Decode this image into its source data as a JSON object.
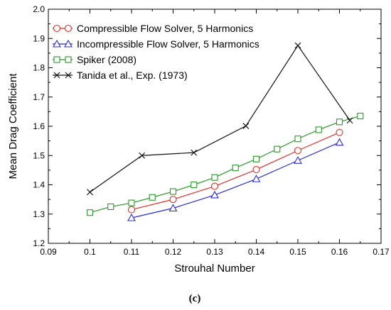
{
  "chart_data": {
    "type": "line",
    "title": "",
    "xlabel": "Strouhal Number",
    "ylabel": "Mean Drag Coefficient",
    "xlim": [
      0.09,
      0.17
    ],
    "ylim": [
      1.2,
      2.0
    ],
    "x_ticks": [
      "0.09",
      "0.1",
      "0.11",
      "0.12",
      "0.13",
      "0.14",
      "0.15",
      "0.16",
      "0.17"
    ],
    "y_ticks": [
      "1.2",
      "1.3",
      "1.4",
      "1.5",
      "1.6",
      "1.7",
      "1.8",
      "1.9",
      "2.0"
    ],
    "grid": false,
    "legend_position": "top-left",
    "series": [
      {
        "name": "Compressible Flow Solver, 5 Harmonics",
        "color": "#e0302a",
        "marker": "circle",
        "points": [
          [
            0.11,
            1.315
          ],
          [
            0.12,
            1.35
          ],
          [
            0.13,
            1.395
          ],
          [
            0.14,
            1.452
          ],
          [
            0.15,
            1.517
          ],
          [
            0.16,
            1.579
          ]
        ]
      },
      {
        "name": "Incompressible Flow Solver, 5 Harmonics",
        "color": "#2a2ad8",
        "marker": "triangle",
        "points": [
          [
            0.11,
            1.287
          ],
          [
            0.12,
            1.32
          ],
          [
            0.13,
            1.365
          ],
          [
            0.14,
            1.42
          ],
          [
            0.15,
            1.483
          ],
          [
            0.16,
            1.545
          ]
        ]
      },
      {
        "name": "Spiker (2008)",
        "color": "#2a9a2a",
        "marker": "square",
        "points": [
          [
            0.1,
            1.305
          ],
          [
            0.105,
            1.325
          ],
          [
            0.11,
            1.338
          ],
          [
            0.115,
            1.357
          ],
          [
            0.12,
            1.377
          ],
          [
            0.125,
            1.4
          ],
          [
            0.13,
            1.425
          ],
          [
            0.135,
            1.458
          ],
          [
            0.14,
            1.488
          ],
          [
            0.145,
            1.522
          ],
          [
            0.15,
            1.557
          ],
          [
            0.155,
            1.588
          ],
          [
            0.16,
            1.615
          ],
          [
            0.165,
            1.635
          ]
        ]
      },
      {
        "name": "Tanida et al., Exp. (1973)",
        "color": "#111111",
        "marker": "x",
        "points": [
          [
            0.1,
            1.375
          ],
          [
            0.1125,
            1.5
          ],
          [
            0.125,
            1.51
          ],
          [
            0.1375,
            1.601
          ],
          [
            0.15,
            1.876
          ],
          [
            0.1625,
            1.62
          ]
        ]
      }
    ],
    "caption": "(c)"
  }
}
